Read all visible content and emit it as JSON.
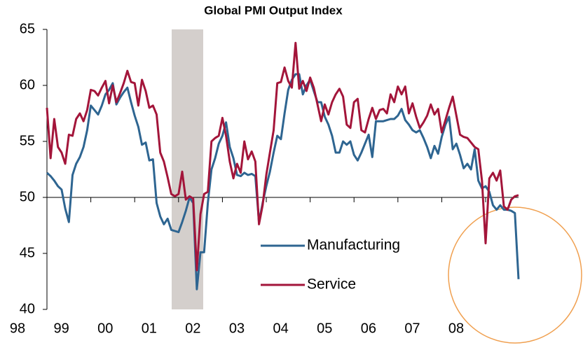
{
  "chart_data": {
    "type": "line",
    "title": "Global PMI Output Index",
    "categories": [
      "98",
      null,
      null,
      null,
      null,
      null,
      null,
      null,
      null,
      null,
      null,
      null,
      "99",
      null,
      null,
      null,
      null,
      null,
      null,
      null,
      null,
      null,
      null,
      null,
      "00",
      null,
      null,
      null,
      null,
      null,
      null,
      null,
      null,
      null,
      null,
      null,
      "01",
      null,
      null,
      null,
      null,
      null,
      null,
      null,
      null,
      null,
      null,
      null,
      "02",
      null,
      null,
      null,
      null,
      null,
      null,
      null,
      null,
      null,
      null,
      null,
      "03",
      null,
      null,
      null,
      null,
      null,
      null,
      null,
      null,
      null,
      null,
      null,
      "04",
      null,
      null,
      null,
      null,
      null,
      null,
      null,
      null,
      null,
      null,
      null,
      "05",
      null,
      null,
      null,
      null,
      null,
      null,
      null,
      null,
      null,
      null,
      null,
      "06",
      null,
      null,
      null,
      null,
      null,
      null,
      null,
      null,
      null,
      null,
      null,
      "07",
      null,
      null,
      null,
      null,
      null,
      null,
      null,
      null,
      null,
      null,
      null,
      "08",
      null,
      null,
      null,
      null,
      null,
      null,
      null,
      null,
      null
    ],
    "series": [
      {
        "name": "Manufacturing",
        "color": "#2e6591",
        "values": [
          52.2,
          51.9,
          51.5,
          51.0,
          50.7,
          49.0,
          47.8,
          52.0,
          53.0,
          53.6,
          54.5,
          56.0,
          58.2,
          57.8,
          57.4,
          58.2,
          59.2,
          59.6,
          60.2,
          58.3,
          58.9,
          59.4,
          59.8,
          58.5,
          57.3,
          56.3,
          54.7,
          54.9,
          53.3,
          53.4,
          49.5,
          48.3,
          47.6,
          48.1,
          47.1,
          47.0,
          46.9,
          47.8,
          48.8,
          50.0,
          49.5,
          41.8,
          45.1,
          45.1,
          49.5,
          52.5,
          53.5,
          54.8,
          55.5,
          56.7,
          54.5,
          53.5,
          52.0,
          51.9,
          52.2,
          52.0,
          52.1,
          51.9,
          47.8,
          49.5,
          51.0,
          52.3,
          54.0,
          55.5,
          55.2,
          57.5,
          59.6,
          60.5,
          61.0,
          61.0,
          59.2,
          60.0,
          60.5,
          59.5,
          58.5,
          58.5,
          57.2,
          56.5,
          55.5,
          54.0,
          54.0,
          55.0,
          54.7,
          55.0,
          53.8,
          53.3,
          54.0,
          54.8,
          55.6,
          53.6,
          56.8,
          56.8,
          56.8,
          56.9,
          57.0,
          57.0,
          57.3,
          57.9,
          56.9,
          56.5,
          56.0,
          55.8,
          56.0,
          55.3,
          54.5,
          53.5,
          54.6,
          53.9,
          55.4,
          56.5,
          57.2,
          54.3,
          54.8,
          53.8,
          52.6,
          53.0,
          52.5,
          54.3,
          51.5,
          50.8,
          51.0,
          50.5,
          49.3,
          48.9,
          49.3,
          48.9,
          48.9,
          48.8,
          48.6,
          42.7
        ]
      },
      {
        "name": "Service",
        "color": "#a3153a",
        "values": [
          58.0,
          53.5,
          57.0,
          54.5,
          54.0,
          53.0,
          55.6,
          55.5,
          57.0,
          57.5,
          56.8,
          57.8,
          59.6,
          59.5,
          59.1,
          59.8,
          60.4,
          58.4,
          60.0,
          58.5,
          59.3,
          60.2,
          61.3,
          60.3,
          60.2,
          58.2,
          60.5,
          59.5,
          58.0,
          58.2,
          57.4,
          54.0,
          53.2,
          51.8,
          50.3,
          50.1,
          50.3,
          52.3,
          49.8,
          50.1,
          49.9,
          43.5,
          48.5,
          50.3,
          50.5,
          55.0,
          55.3,
          55.5,
          57.1,
          55.5,
          53.2,
          51.7,
          53.0,
          52.2,
          55.0,
          53.4,
          54.1,
          53.2,
          47.6,
          49.3,
          52.0,
          54.0,
          56.0,
          60.2,
          60.3,
          61.6,
          60.4,
          59.8,
          63.8,
          59.7,
          60.4,
          59.5,
          60.7,
          59.8,
          58.3,
          56.8,
          58.3,
          57.4,
          58.5,
          59.2,
          59.7,
          59.0,
          56.5,
          56.2,
          58.5,
          58.8,
          56.0,
          55.8,
          57.0,
          58.0,
          57.0,
          57.8,
          57.9,
          57.5,
          59.2,
          58.5,
          59.9,
          59.2,
          59.9,
          57.5,
          58.4,
          57.2,
          56.2,
          56.7,
          57.3,
          58.3,
          57.4,
          57.9,
          55.8,
          56.9,
          58.0,
          59.0,
          57.3,
          55.6,
          55.4,
          55.3,
          54.9,
          54.5,
          54.3,
          51.5,
          45.9,
          51.7,
          52.2,
          51.5,
          52.4,
          49.2,
          48.9,
          49.8,
          50.1,
          50.2
        ]
      }
    ],
    "ylim": [
      40,
      65
    ],
    "yticks": [
      40,
      45,
      50,
      55,
      60,
      65
    ]
  }
}
